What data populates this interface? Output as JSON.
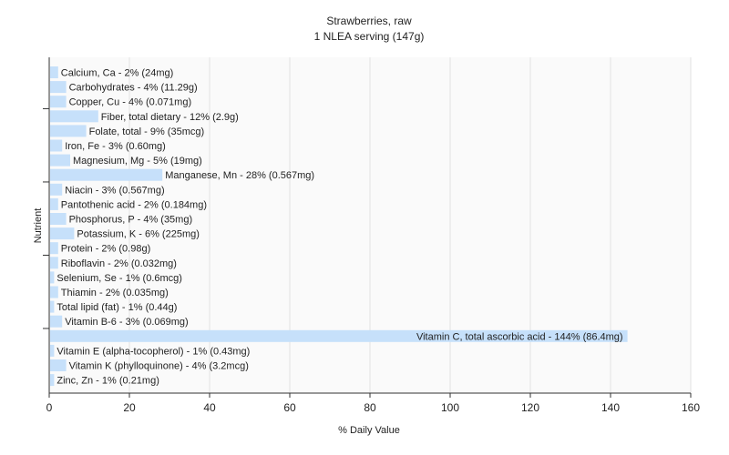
{
  "chart_data": {
    "type": "bar",
    "orientation": "horizontal",
    "title": "Strawberries, raw",
    "subtitle": "1 NLEA serving (147g)",
    "xlabel": "% Daily Value",
    "ylabel": "Nutrient",
    "xlim": [
      0,
      160
    ],
    "xticks": [
      0,
      20,
      40,
      60,
      80,
      100,
      120,
      140,
      160
    ],
    "grid": "vertical",
    "bar_color": "#c6e0fa",
    "categories": [
      "Calcium, Ca",
      "Carbohydrates",
      "Copper, Cu",
      "Fiber, total dietary",
      "Folate, total",
      "Iron, Fe",
      "Magnesium, Mg",
      "Manganese, Mn",
      "Niacin",
      "Pantothenic acid",
      "Phosphorus, P",
      "Potassium, K",
      "Protein",
      "Riboflavin",
      "Selenium, Se",
      "Thiamin",
      "Total lipid (fat)",
      "Vitamin B-6",
      "Vitamin C, total ascorbic acid",
      "Vitamin E (alpha-tocopherol)",
      "Vitamin K (phylloquinone)",
      "Zinc, Zn"
    ],
    "values": [
      2,
      4,
      4,
      12,
      9,
      3,
      5,
      28,
      3,
      2,
      4,
      6,
      2,
      2,
      1,
      2,
      1,
      3,
      144,
      1,
      4,
      1
    ],
    "labels": [
      "Calcium, Ca - 2% (24mg)",
      "Carbohydrates - 4% (11.29g)",
      "Copper, Cu - 4% (0.071mg)",
      "Fiber, total dietary - 12% (2.9g)",
      "Folate, total - 9% (35mcg)",
      "Iron, Fe - 3% (0.60mg)",
      "Magnesium, Mg - 5% (19mg)",
      "Manganese, Mn - 28% (0.567mg)",
      "Niacin - 3% (0.567mg)",
      "Pantothenic acid - 2% (0.184mg)",
      "Phosphorus, P - 4% (35mg)",
      "Potassium, K - 6% (225mg)",
      "Protein - 2% (0.98g)",
      "Riboflavin - 2% (0.032mg)",
      "Selenium, Se - 1% (0.6mcg)",
      "Thiamin - 2% (0.035mg)",
      "Total lipid (fat) - 1% (0.44g)",
      "Vitamin B-6 - 3% (0.069mg)",
      "Vitamin C, total ascorbic acid - 144% (86.4mg)",
      "Vitamin E (alpha-tocopherol) - 1% (0.43mg)",
      "Vitamin K (phylloquinone) - 4% (3.2mcg)",
      "Zinc, Zn - 1% (0.21mg)"
    ]
  }
}
